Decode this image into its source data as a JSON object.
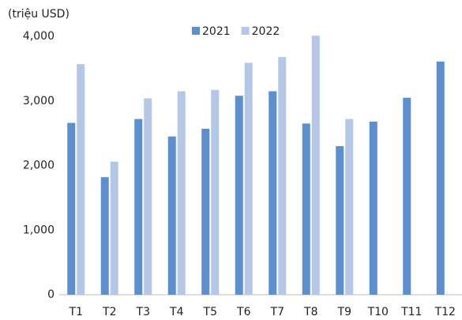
{
  "chart_data": {
    "type": "bar",
    "y_axis_label": "(triệu USD)",
    "categories": [
      "T1",
      "T2",
      "T3",
      "T4",
      "T5",
      "T6",
      "T7",
      "T8",
      "T9",
      "T10",
      "T11",
      "T12"
    ],
    "series": [
      {
        "name": "2021",
        "color": "#5b8fd1",
        "values": [
          2660,
          1820,
          2720,
          2450,
          2570,
          3080,
          3150,
          2650,
          2300,
          2680,
          3050,
          3610
        ]
      },
      {
        "name": "2022",
        "color": "#b4c7e7",
        "values": [
          3570,
          2060,
          3040,
          3150,
          3170,
          3590,
          3680,
          4010,
          2720,
          null,
          null,
          null
        ]
      }
    ],
    "ylim": [
      0,
      4000
    ],
    "yticks": [
      0,
      {
        "value": 1000,
        "label": "1,000"
      },
      {
        "value": 2000,
        "label": "2,000"
      },
      {
        "value": 3000,
        "label": "3,000"
      },
      {
        "value": 4000,
        "label": "4,000"
      }
    ],
    "legend": "top",
    "grid": false
  }
}
